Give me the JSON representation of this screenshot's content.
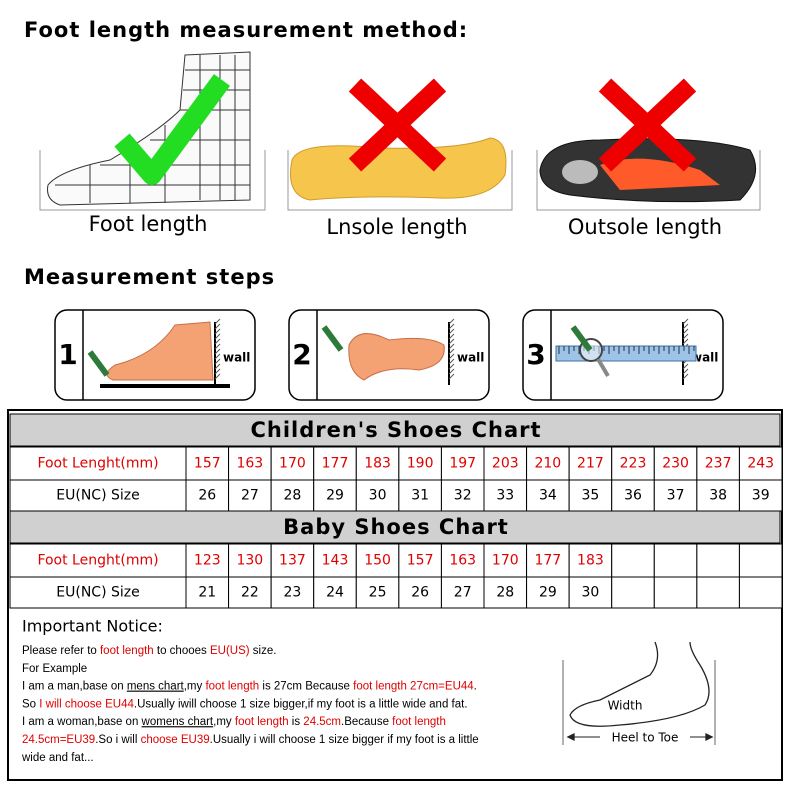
{
  "heading_method": "Foot length measurement method:",
  "methods": [
    "Foot length",
    "Lnsole length",
    "Outsole length"
  ],
  "heading_steps": "Measurement steps",
  "steps": [
    {
      "number": "1",
      "label": "wall"
    },
    {
      "number": "2",
      "label": "wall"
    },
    {
      "number": "3",
      "label": "wall"
    }
  ],
  "children_chart": {
    "title": "Children's Shoes Chart",
    "row_labels": [
      "Foot Lenght(mm)",
      "EU(NC) Size"
    ],
    "foot_length": [
      157,
      163,
      170,
      177,
      183,
      190,
      197,
      203,
      210,
      217,
      223,
      230,
      237,
      243
    ],
    "size": [
      26,
      27,
      28,
      29,
      30,
      31,
      32,
      33,
      34,
      35,
      36,
      37,
      38,
      39
    ]
  },
  "baby_chart": {
    "title": "Baby Shoes Chart",
    "row_labels": [
      "Foot Lenght(mm)",
      "EU(NC) Size"
    ],
    "foot_length": [
      123,
      130,
      137,
      143,
      150,
      157,
      163,
      170,
      177,
      183
    ],
    "size": [
      21,
      22,
      23,
      24,
      25,
      26,
      27,
      28,
      29,
      30
    ]
  },
  "notice": {
    "title": "Important Notice:",
    "lines": [
      [
        {
          "text": "Please refer to "
        },
        {
          "text": "foot length",
          "style": "red"
        },
        {
          "text": " to chooes "
        },
        {
          "text": "EU(US)",
          "style": "red"
        },
        {
          "text": " size."
        }
      ],
      [
        {
          "text": "For Example"
        }
      ],
      [
        {
          "text": "I am a man,base on "
        },
        {
          "text": "mens chart",
          "style": "underline"
        },
        {
          "text": ",my "
        },
        {
          "text": "foot length",
          "style": "red"
        },
        {
          "text": " is 27cm Because "
        },
        {
          "text": "foot length 27cm=EU44",
          "style": "red"
        },
        {
          "text": "."
        }
      ],
      [
        {
          "text": "So "
        },
        {
          "text": "I will choose EU44",
          "style": "red"
        },
        {
          "text": ".Usually iwill choose 1 size bigger,if my foot is a little wide and fat."
        }
      ],
      [
        {
          "text": "I am a woman,base on "
        },
        {
          "text": "womens chart",
          "style": "underline"
        },
        {
          "text": ",my "
        },
        {
          "text": "foot length",
          "style": "red"
        },
        {
          "text": " is "
        },
        {
          "text": "24.5cm",
          "style": "red"
        },
        {
          "text": ".Because "
        },
        {
          "text": "foot length",
          "style": "red"
        }
      ],
      [
        {
          "text": "24.5cm=EU39",
          "style": "red"
        },
        {
          "text": ".So i will "
        },
        {
          "text": "choose EU39",
          "style": "red"
        },
        {
          "text": ".Usually i will choose 1 size bigger if my foot is a little"
        }
      ],
      [
        {
          "text": "wide and fat..."
        }
      ]
    ],
    "diagram_labels": [
      "Width",
      "Heel to Toe"
    ]
  }
}
